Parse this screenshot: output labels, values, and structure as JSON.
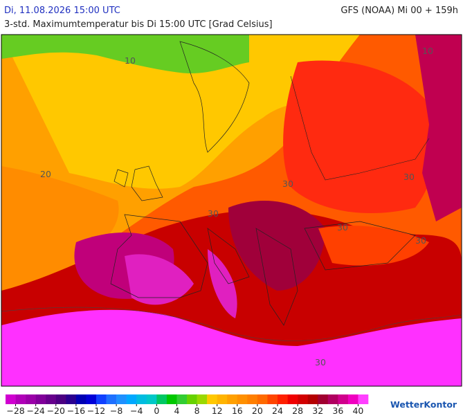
{
  "header": {
    "datetime": "Di, 11.08.2026 15:00 UTC",
    "model": "GFS (NOAA) Mi 00 + 159h",
    "subtitle": "3-std. Maximumtemperatur bis Di 15:00 UTC [Grad Celsius]"
  },
  "map": {
    "contour_labels": [
      "10",
      "10",
      "20",
      "30",
      "30",
      "30",
      "30",
      "30",
      "30"
    ]
  },
  "colorbar": {
    "ticks": [
      {
        "value": -28,
        "label": "−28"
      },
      {
        "value": -24,
        "label": "−24"
      },
      {
        "value": -20,
        "label": "−20"
      },
      {
        "value": -16,
        "label": "−16"
      },
      {
        "value": -12,
        "label": "−12"
      },
      {
        "value": -8,
        "label": "−8"
      },
      {
        "value": -4,
        "label": "−4"
      },
      0,
      4,
      8,
      12,
      16,
      20,
      24,
      28,
      32,
      36,
      40
    ],
    "range": [
      -30,
      42
    ],
    "colors": [
      "#d000d0",
      "#b000b8",
      "#9a00a8",
      "#80009a",
      "#66008c",
      "#4b0082",
      "#2a0090",
      "#0000b4",
      "#0000d8",
      "#1040ff",
      "#1e70ff",
      "#1e90ff",
      "#00a8ff",
      "#00bce0",
      "#00c8c8",
      "#00c864",
      "#00c800",
      "#32cd32",
      "#66d200",
      "#9ad800",
      "#ffc800",
      "#ffb400",
      "#ffa000",
      "#ff9000",
      "#ff7f00",
      "#ff6a00",
      "#ff4500",
      "#ff2000",
      "#f00000",
      "#d20000",
      "#b40000",
      "#a00030",
      "#b00060",
      "#d0008c",
      "#f000c0",
      "#ff40ff"
    ]
  },
  "logo": "WetterKontor"
}
